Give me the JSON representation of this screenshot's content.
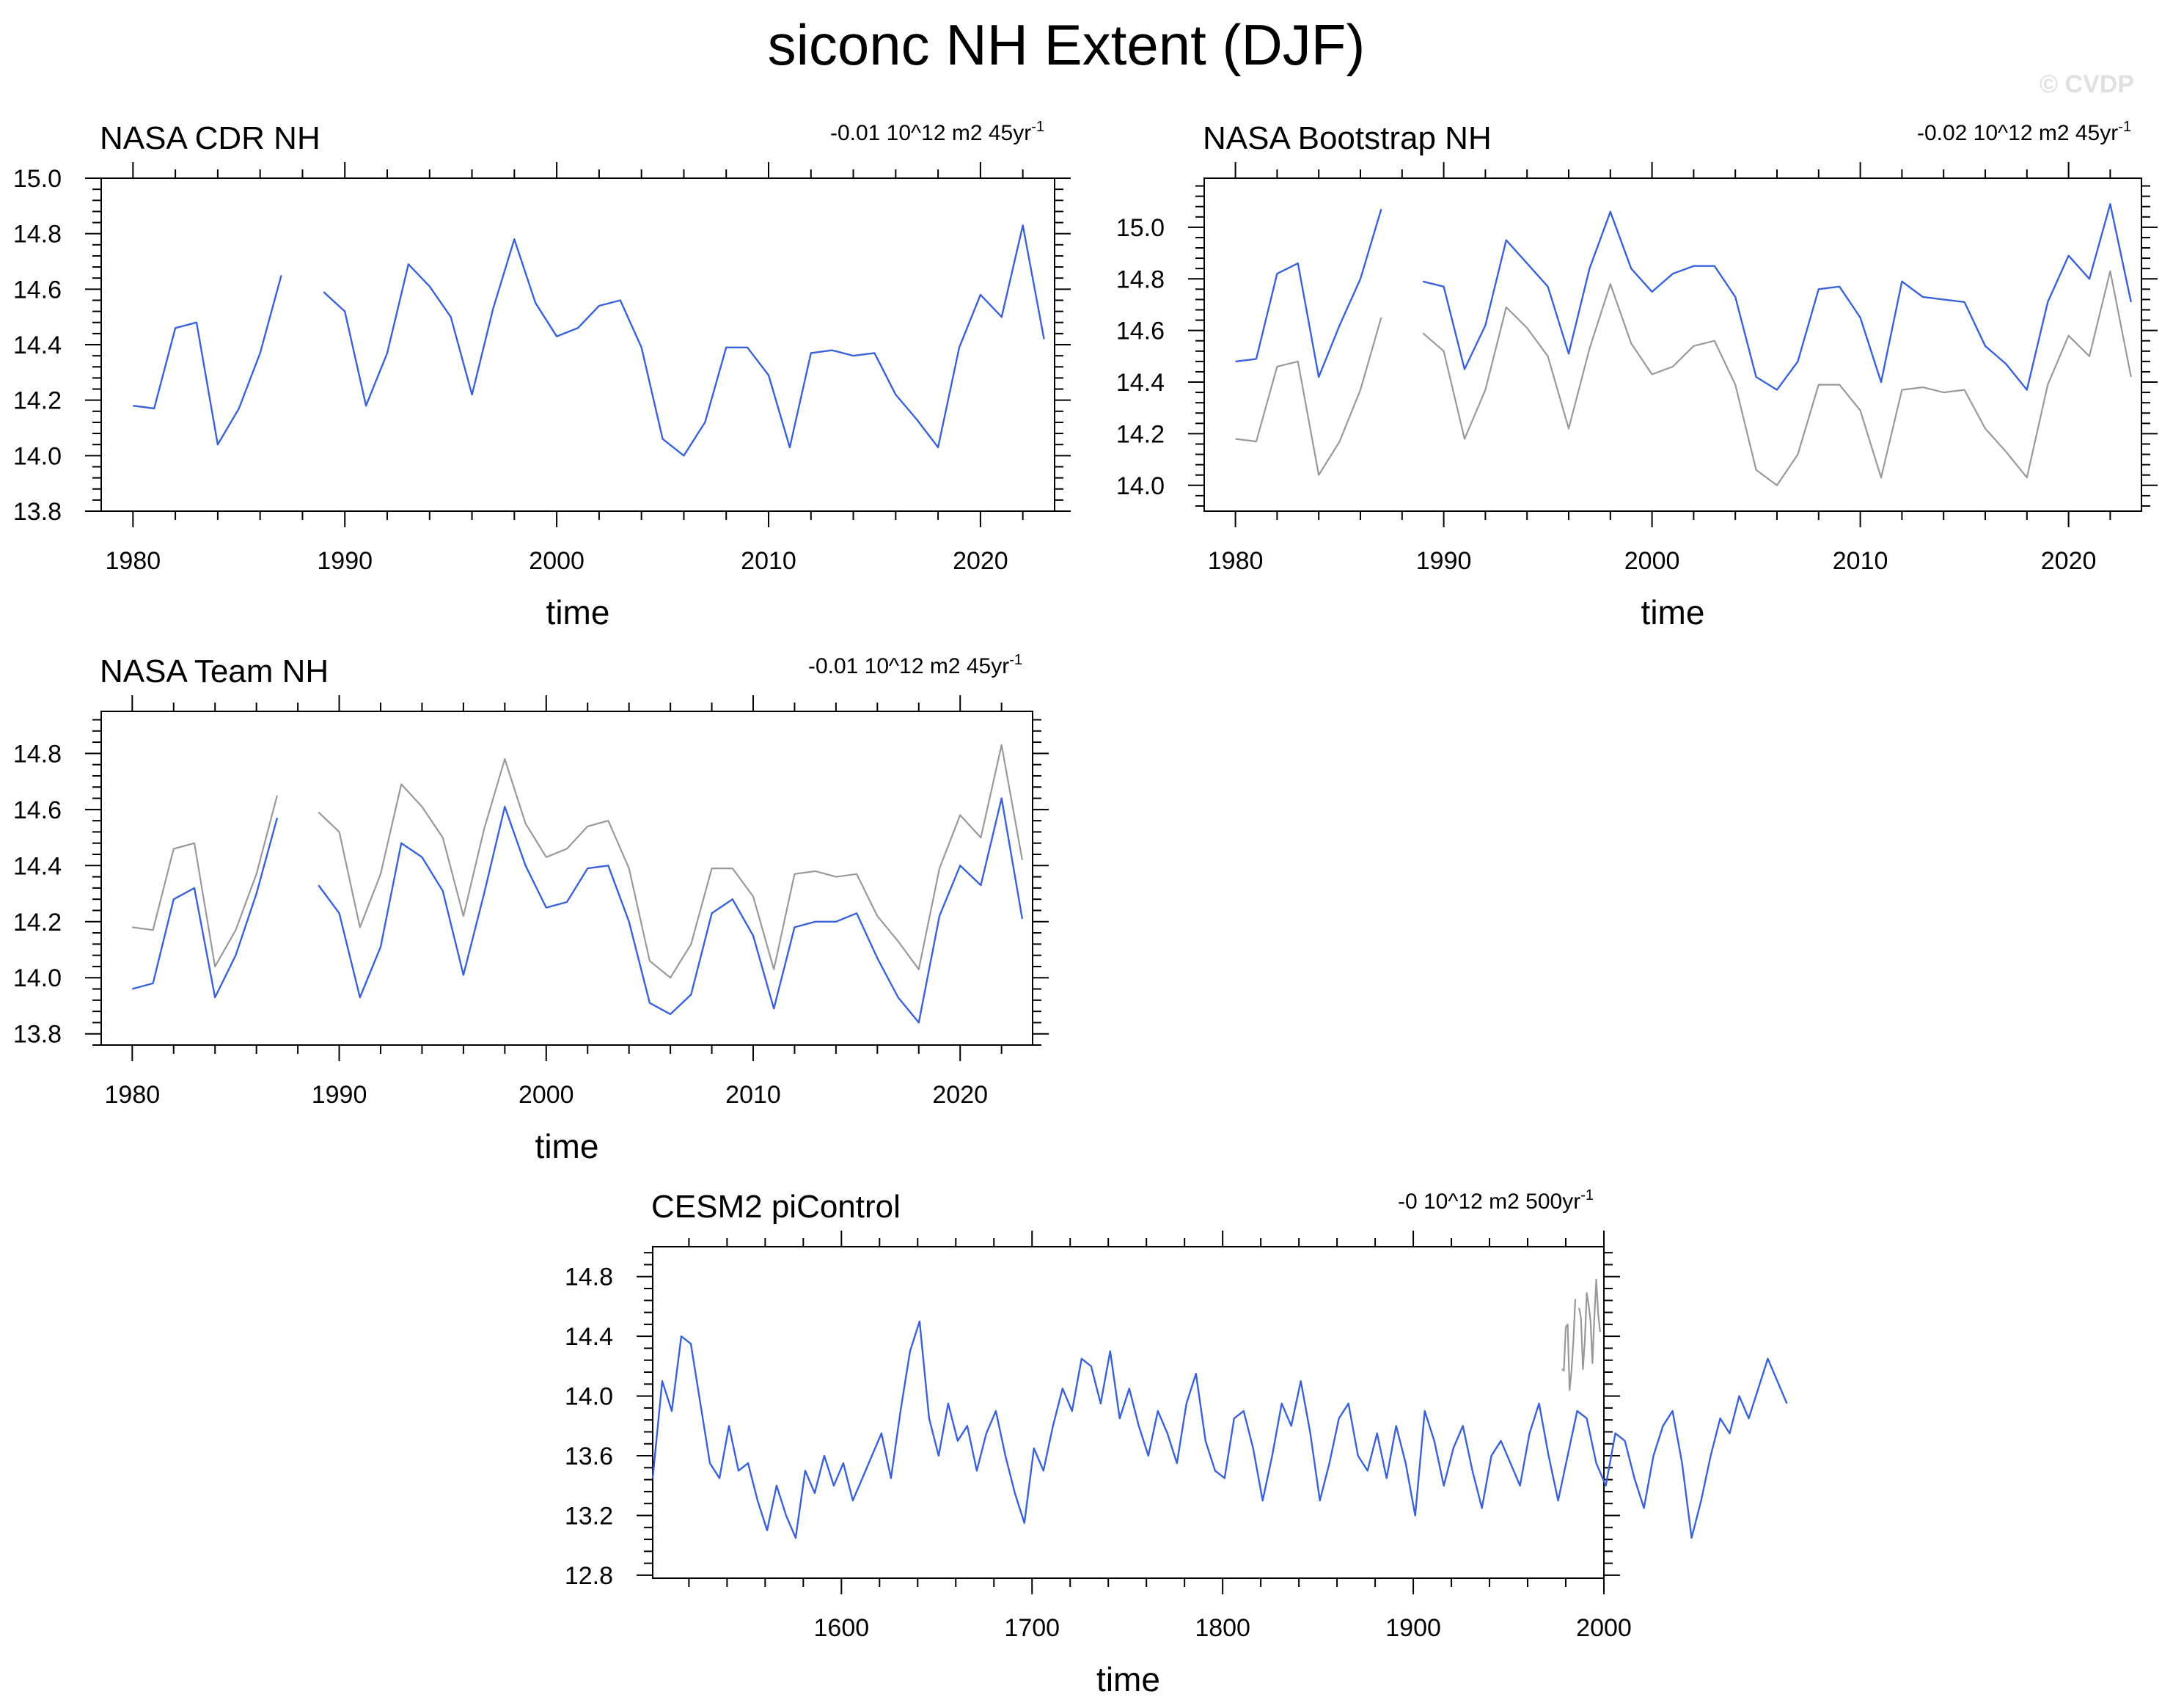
{
  "title": "siconc NH Extent (DJF)",
  "watermark": "© CVDP",
  "colors": {
    "primary": "#3a62d6",
    "reference": "#999999",
    "axis": "#000000"
  },
  "chart_data": [
    {
      "type": "line",
      "title": "NASA CDR NH",
      "trend_label": "-0.01 10^12 m2 45yr",
      "trend_exponent": "-1",
      "xlabel": "time",
      "ylabel": "",
      "xlim": [
        1978.5,
        2023.5
      ],
      "ylim": [
        13.8,
        15.0
      ],
      "xticks": [
        1980,
        1990,
        2000,
        2010,
        2020
      ],
      "yticks": [
        "13.8",
        "14.0",
        "14.2",
        "14.4",
        "14.6",
        "14.8",
        "15.0"
      ],
      "series": [
        {
          "role": "primary",
          "x": [
            1980,
            1981,
            1982,
            1983,
            1984,
            1985,
            1986,
            1987,
            1988,
            1989,
            1990,
            1991,
            1992,
            1993,
            1994,
            1995,
            1996,
            1997,
            1998,
            1999,
            2000,
            2001,
            2002,
            2003,
            2004,
            2005,
            2006,
            2007,
            2008,
            2009,
            2010,
            2011,
            2012,
            2013,
            2014,
            2015,
            2016,
            2017,
            2018,
            2019,
            2020,
            2021,
            2022,
            2023
          ],
          "y": [
            14.18,
            14.17,
            14.46,
            14.48,
            14.04,
            14.17,
            14.37,
            14.65,
            null,
            14.59,
            14.52,
            14.18,
            14.37,
            14.69,
            14.61,
            14.5,
            14.22,
            14.53,
            14.78,
            14.55,
            14.43,
            14.46,
            14.54,
            14.56,
            14.39,
            14.06,
            14.0,
            14.12,
            14.39,
            14.39,
            14.29,
            14.03,
            14.37,
            14.38,
            14.36,
            14.37,
            14.22,
            14.13,
            14.03,
            14.39,
            14.58,
            14.5,
            14.83,
            14.42
          ]
        }
      ]
    },
    {
      "type": "line",
      "title": "NASA Bootstrap NH",
      "trend_label": "-0.02 10^12 m2 45yr",
      "trend_exponent": "-1",
      "xlabel": "time",
      "ylabel": "",
      "xlim": [
        1978.5,
        2023.5
      ],
      "ylim": [
        13.9,
        15.19
      ],
      "xticks": [
        1980,
        1990,
        2000,
        2010,
        2020
      ],
      "yticks": [
        "14.0",
        "14.2",
        "14.4",
        "14.6",
        "14.8",
        "15.0"
      ],
      "series": [
        {
          "role": "reference",
          "x": [
            1980,
            1981,
            1982,
            1983,
            1984,
            1985,
            1986,
            1987,
            1988,
            1989,
            1990,
            1991,
            1992,
            1993,
            1994,
            1995,
            1996,
            1997,
            1998,
            1999,
            2000,
            2001,
            2002,
            2003,
            2004,
            2005,
            2006,
            2007,
            2008,
            2009,
            2010,
            2011,
            2012,
            2013,
            2014,
            2015,
            2016,
            2017,
            2018,
            2019,
            2020,
            2021,
            2022,
            2023
          ],
          "y": [
            14.18,
            14.17,
            14.46,
            14.48,
            14.04,
            14.17,
            14.37,
            14.65,
            null,
            14.59,
            14.52,
            14.18,
            14.37,
            14.69,
            14.61,
            14.5,
            14.22,
            14.53,
            14.78,
            14.55,
            14.43,
            14.46,
            14.54,
            14.56,
            14.39,
            14.06,
            14.0,
            14.12,
            14.39,
            14.39,
            14.29,
            14.03,
            14.37,
            14.38,
            14.36,
            14.37,
            14.22,
            14.13,
            14.03,
            14.39,
            14.58,
            14.5,
            14.83,
            14.42
          ]
        },
        {
          "role": "primary",
          "x": [
            1980,
            1981,
            1982,
            1983,
            1984,
            1985,
            1986,
            1987,
            1988,
            1989,
            1990,
            1991,
            1992,
            1993,
            1994,
            1995,
            1996,
            1997,
            1998,
            1999,
            2000,
            2001,
            2002,
            2003,
            2004,
            2005,
            2006,
            2007,
            2008,
            2009,
            2010,
            2011,
            2012,
            2013,
            2014,
            2015,
            2016,
            2017,
            2018,
            2019,
            2020,
            2021,
            2022,
            2023
          ],
          "y": [
            14.48,
            14.49,
            14.82,
            14.86,
            14.42,
            14.62,
            14.8,
            15.07,
            null,
            14.79,
            14.77,
            14.45,
            14.62,
            14.95,
            14.86,
            14.77,
            14.51,
            14.84,
            15.06,
            14.84,
            14.75,
            14.82,
            14.85,
            14.85,
            14.73,
            14.42,
            14.37,
            14.48,
            14.76,
            14.77,
            14.65,
            14.4,
            14.79,
            14.73,
            14.72,
            14.71,
            14.54,
            14.47,
            14.37,
            14.71,
            14.89,
            14.8,
            15.09,
            14.71
          ]
        }
      ]
    },
    {
      "type": "line",
      "title": "NASA Team NH",
      "trend_label": "-0.01 10^12 m2 45yr",
      "trend_exponent": "-1",
      "xlabel": "time",
      "ylabel": "",
      "xlim": [
        1978.5,
        2023.5
      ],
      "ylim": [
        13.76,
        14.95
      ],
      "xticks": [
        1980,
        1990,
        2000,
        2010,
        2020
      ],
      "yticks": [
        "13.8",
        "14.0",
        "14.2",
        "14.4",
        "14.6",
        "14.8"
      ],
      "series": [
        {
          "role": "reference",
          "x": [
            1980,
            1981,
            1982,
            1983,
            1984,
            1985,
            1986,
            1987,
            1988,
            1989,
            1990,
            1991,
            1992,
            1993,
            1994,
            1995,
            1996,
            1997,
            1998,
            1999,
            2000,
            2001,
            2002,
            2003,
            2004,
            2005,
            2006,
            2007,
            2008,
            2009,
            2010,
            2011,
            2012,
            2013,
            2014,
            2015,
            2016,
            2017,
            2018,
            2019,
            2020,
            2021,
            2022,
            2023
          ],
          "y": [
            14.18,
            14.17,
            14.46,
            14.48,
            14.04,
            14.17,
            14.37,
            14.65,
            null,
            14.59,
            14.52,
            14.18,
            14.37,
            14.69,
            14.61,
            14.5,
            14.22,
            14.53,
            14.78,
            14.55,
            14.43,
            14.46,
            14.54,
            14.56,
            14.39,
            14.06,
            14.0,
            14.12,
            14.39,
            14.39,
            14.29,
            14.03,
            14.37,
            14.38,
            14.36,
            14.37,
            14.22,
            14.13,
            14.03,
            14.39,
            14.58,
            14.5,
            14.83,
            14.42
          ]
        },
        {
          "role": "primary",
          "x": [
            1980,
            1981,
            1982,
            1983,
            1984,
            1985,
            1986,
            1987,
            1988,
            1989,
            1990,
            1991,
            1992,
            1993,
            1994,
            1995,
            1996,
            1997,
            1998,
            1999,
            2000,
            2001,
            2002,
            2003,
            2004,
            2005,
            2006,
            2007,
            2008,
            2009,
            2010,
            2011,
            2012,
            2013,
            2014,
            2015,
            2016,
            2017,
            2018,
            2019,
            2020,
            2021,
            2022,
            2023
          ],
          "y": [
            13.96,
            13.98,
            14.28,
            14.32,
            13.93,
            14.08,
            14.3,
            14.57,
            null,
            14.33,
            14.23,
            13.93,
            14.11,
            14.48,
            14.43,
            14.31,
            14.01,
            14.3,
            14.61,
            14.4,
            14.25,
            14.27,
            14.39,
            14.4,
            14.2,
            13.91,
            13.87,
            13.94,
            14.23,
            14.28,
            14.15,
            13.89,
            14.18,
            14.2,
            14.2,
            14.23,
            14.07,
            13.93,
            13.84,
            14.22,
            14.4,
            14.33,
            14.64,
            14.21
          ]
        }
      ]
    },
    {
      "type": "line",
      "title": "CESM2 piControl",
      "trend_label": "-0 10^12 m2 500yr",
      "trend_exponent": "-1",
      "xlabel": "time",
      "ylabel": "",
      "xlim": [
        1501,
        2000
      ],
      "ylim": [
        12.78,
        15.0
      ],
      "xticks": [
        1600,
        1700,
        1800,
        1900,
        2000
      ],
      "yticks": [
        "12.8",
        "13.2",
        "13.6",
        "14.0",
        "14.4",
        "14.8"
      ],
      "series": [
        {
          "role": "reference",
          "x_start": 1978,
          "x_step": 1,
          "y": [
            14.18,
            14.17,
            14.46,
            14.48,
            14.04,
            14.17,
            14.37,
            14.65,
            null,
            14.59,
            14.52,
            14.18,
            14.37,
            14.69,
            14.61,
            14.5,
            14.22,
            14.53,
            14.78,
            14.55,
            14.43
          ]
        },
        {
          "role": "primary",
          "x_start": 1501,
          "x_step": 5,
          "y": [
            13.45,
            14.1,
            13.9,
            14.4,
            14.35,
            13.95,
            13.55,
            13.45,
            13.8,
            13.5,
            13.55,
            13.3,
            13.1,
            13.4,
            13.2,
            13.05,
            13.5,
            13.35,
            13.6,
            13.4,
            13.55,
            13.3,
            13.45,
            13.6,
            13.75,
            13.45,
            13.9,
            14.3,
            14.5,
            13.85,
            13.6,
            13.95,
            13.7,
            13.8,
            13.5,
            13.75,
            13.9,
            13.6,
            13.35,
            13.15,
            13.65,
            13.5,
            13.8,
            14.05,
            13.9,
            14.25,
            14.2,
            13.95,
            14.3,
            13.85,
            14.05,
            13.8,
            13.6,
            13.9,
            13.75,
            13.55,
            13.95,
            14.15,
            13.7,
            13.5,
            13.45,
            13.85,
            13.9,
            13.65,
            13.3,
            13.6,
            13.95,
            13.8,
            14.1,
            13.75,
            13.3,
            13.55,
            13.85,
            13.95,
            13.6,
            13.5,
            13.75,
            13.45,
            13.8,
            13.55,
            13.2,
            13.9,
            13.7,
            13.4,
            13.65,
            13.8,
            13.5,
            13.25,
            13.6,
            13.7,
            13.55,
            13.4,
            13.75,
            13.95,
            13.6,
            13.3,
            13.6,
            13.9,
            13.85,
            13.55,
            13.4,
            13.75,
            13.7,
            13.45,
            13.25,
            13.6,
            13.8,
            13.9,
            13.55,
            13.05,
            13.3,
            13.6,
            13.85,
            13.75,
            14.0,
            13.85,
            14.05,
            14.25,
            14.1,
            13.95
          ]
        }
      ]
    }
  ]
}
